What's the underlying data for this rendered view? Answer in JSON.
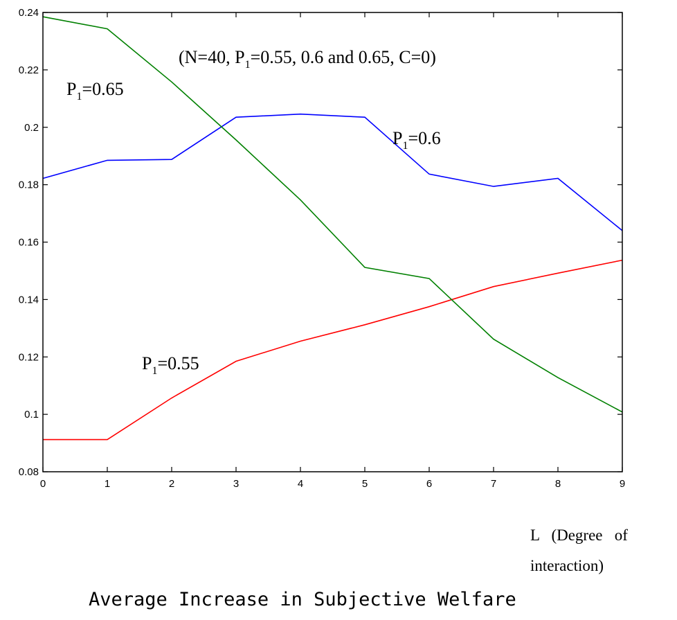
{
  "chart_data": {
    "type": "line",
    "title": "",
    "xlabel": "",
    "ylabel": "",
    "xlim": [
      0,
      9
    ],
    "ylim": [
      0.08,
      0.24
    ],
    "x": [
      0,
      1,
      2,
      3,
      4,
      5,
      6,
      7,
      8,
      9
    ],
    "x_ticks": [
      "0",
      "1",
      "2",
      "3",
      "4",
      "5",
      "6",
      "7",
      "8",
      "9"
    ],
    "y_ticks": [
      {
        "value": 0.08,
        "label": "0.08"
      },
      {
        "value": 0.1,
        "label": "0.1"
      },
      {
        "value": 0.12,
        "label": "0.12"
      },
      {
        "value": 0.14,
        "label": "0.14"
      },
      {
        "value": 0.16,
        "label": "0.16"
      },
      {
        "value": 0.18,
        "label": "0.18"
      },
      {
        "value": 0.2,
        "label": "0.2"
      },
      {
        "value": 0.22,
        "label": "0.22"
      },
      {
        "value": 0.24,
        "label": "0.24"
      }
    ],
    "grid": false,
    "series": [
      {
        "color": "#ff0000",
        "values": [
          0.0912,
          0.0912,
          0.1057,
          0.1185,
          0.1255,
          0.1312,
          0.1375,
          0.1445,
          0.1492,
          0.1537
        ]
      },
      {
        "color": "#0000ff",
        "values": [
          0.1822,
          0.1885,
          0.1888,
          0.2035,
          0.2046,
          0.2035,
          0.1837,
          0.1794,
          0.1822,
          0.164
        ]
      },
      {
        "color": "#008000",
        "values": [
          0.2385,
          0.2343,
          0.2158,
          0.1956,
          0.1747,
          0.1512,
          0.1473,
          0.1262,
          0.1128,
          0.1008
        ]
      }
    ],
    "annotations": {
      "params": {
        "open": "(N=40, P",
        "sub": "1",
        "rest": "=0.55, 0.6 and 0.65, C=0)"
      },
      "p065": {
        "main": "P",
        "sub": "1",
        "rest": "=0.65"
      },
      "p06": {
        "main": "P",
        "sub": "1",
        "rest": "=0.6"
      },
      "p055": {
        "main": "P",
        "sub": "1",
        "rest": "=0.55"
      }
    }
  },
  "x_axis_label": {
    "line1": "L   (Degree   of",
    "line2": "interaction)"
  },
  "caption": "Average Increase in Subjective Welfare"
}
